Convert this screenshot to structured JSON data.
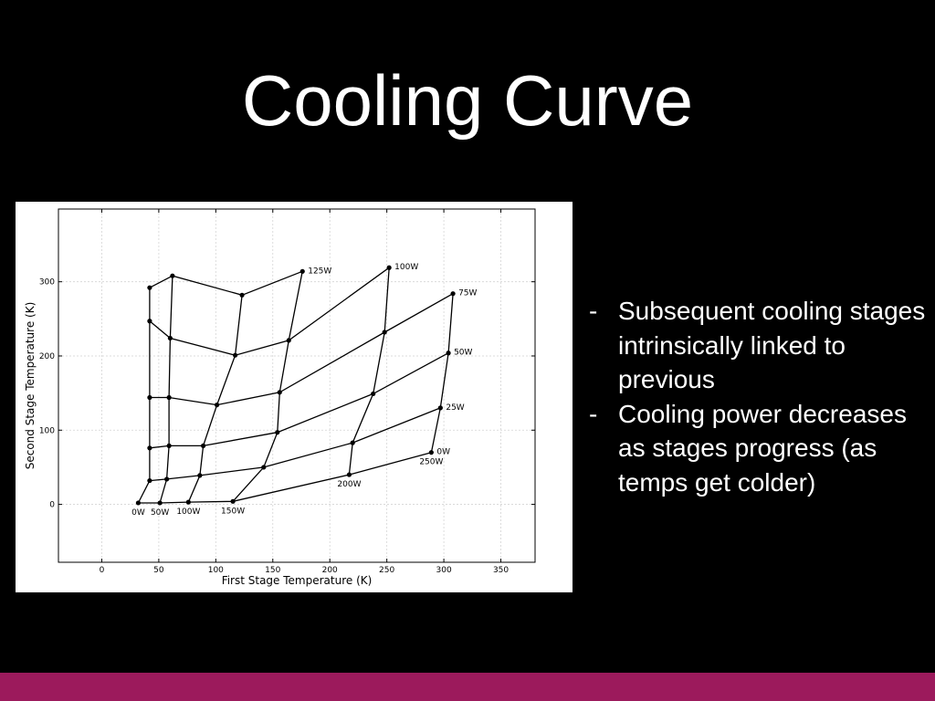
{
  "slide": {
    "title": "Cooling Curve",
    "bullets": [
      "Subsequent cooling stages intrinsically linked to previous",
      "Cooling power decreases as stages progress (as temps get colder)"
    ],
    "bullet_marker": "-"
  },
  "colors": {
    "background": "#000000",
    "text": "#ffffff",
    "footer_bar": "#9c1a5c",
    "chart_line": "#000000",
    "chart_background": "#ffffff"
  },
  "chart_data": {
    "type": "line",
    "title": "",
    "xlabel": "First Stage Temperature (K)",
    "ylabel": "Second Stage Temperature (K)",
    "xlim": [
      -38,
      380
    ],
    "ylim": [
      -78,
      398
    ],
    "xticks": [
      0,
      50,
      100,
      150,
      200,
      250,
      300,
      350
    ],
    "yticks": [
      0,
      100,
      200,
      300
    ],
    "grid": true,
    "series": [
      {
        "label_end": "first",
        "points": [
          [
            32,
            2
          ],
          [
            42,
            32
          ],
          [
            42,
            76
          ],
          [
            42,
            144
          ],
          [
            42,
            247
          ],
          [
            42,
            292
          ]
        ]
      },
      {
        "label_end": "first",
        "points": [
          [
            51,
            2
          ],
          [
            57,
            34
          ],
          [
            59,
            79
          ],
          [
            59,
            144
          ],
          [
            60,
            224
          ],
          [
            62,
            308
          ]
        ]
      },
      {
        "label_end": "first",
        "points": [
          [
            76,
            3
          ],
          [
            86,
            39
          ],
          [
            89,
            79
          ],
          [
            101,
            134
          ],
          [
            117,
            201
          ],
          [
            123,
            282
          ]
        ]
      },
      {
        "label_end": "first",
        "points": [
          [
            115,
            4
          ],
          [
            142,
            50
          ],
          [
            154,
            97
          ],
          [
            156,
            151
          ],
          [
            164,
            221
          ],
          [
            176,
            314
          ]
        ]
      },
      {
        "label_end": "first",
        "points": [
          [
            217,
            40
          ],
          [
            220,
            83
          ],
          [
            238,
            149
          ],
          [
            248,
            232
          ],
          [
            252,
            319
          ]
        ]
      },
      {
        "label_end": "first",
        "points": [
          [
            289,
            70
          ],
          [
            297,
            130
          ],
          [
            304,
            204
          ],
          [
            308,
            284
          ]
        ]
      },
      {
        "label_end": "last",
        "points": [
          [
            42,
            292
          ],
          [
            62,
            308
          ],
          [
            123,
            282
          ],
          [
            176,
            314
          ]
        ]
      },
      {
        "label_end": "last",
        "points": [
          [
            42,
            247
          ],
          [
            60,
            224
          ],
          [
            117,
            201
          ],
          [
            164,
            221
          ],
          [
            252,
            319
          ]
        ]
      },
      {
        "label_end": "last",
        "points": [
          [
            42,
            144
          ],
          [
            59,
            144
          ],
          [
            101,
            134
          ],
          [
            156,
            151
          ],
          [
            248,
            232
          ],
          [
            308,
            284
          ]
        ]
      },
      {
        "label_end": "last",
        "points": [
          [
            42,
            76
          ],
          [
            59,
            79
          ],
          [
            89,
            79
          ],
          [
            154,
            97
          ],
          [
            238,
            149
          ],
          [
            304,
            204
          ]
        ]
      },
      {
        "label_end": "last",
        "points": [
          [
            42,
            32
          ],
          [
            57,
            34
          ],
          [
            86,
            39
          ],
          [
            142,
            50
          ],
          [
            220,
            83
          ],
          [
            297,
            130
          ]
        ]
      },
      {
        "label_end": "last",
        "points": [
          [
            32,
            2
          ],
          [
            51,
            2
          ],
          [
            76,
            3
          ],
          [
            115,
            4
          ],
          [
            217,
            40
          ],
          [
            289,
            70
          ]
        ]
      }
    ],
    "annotations": [
      {
        "text": "0W",
        "x": 32,
        "y": 2,
        "pos": "below"
      },
      {
        "text": "50W",
        "x": 51,
        "y": 2,
        "pos": "below"
      },
      {
        "text": "100W",
        "x": 76,
        "y": 3,
        "pos": "below"
      },
      {
        "text": "150W",
        "x": 115,
        "y": 4,
        "pos": "below"
      },
      {
        "text": "200W",
        "x": 217,
        "y": 40,
        "pos": "below"
      },
      {
        "text": "250W",
        "x": 289,
        "y": 70,
        "pos": "below"
      },
      {
        "text": "0W",
        "x": 289,
        "y": 70,
        "pos": "right"
      },
      {
        "text": "25W",
        "x": 297,
        "y": 130,
        "pos": "right"
      },
      {
        "text": "50W",
        "x": 304,
        "y": 204,
        "pos": "right"
      },
      {
        "text": "75W",
        "x": 308,
        "y": 284,
        "pos": "right"
      },
      {
        "text": "100W",
        "x": 252,
        "y": 319,
        "pos": "right"
      },
      {
        "text": "125W",
        "x": 176,
        "y": 314,
        "pos": "right"
      }
    ]
  }
}
